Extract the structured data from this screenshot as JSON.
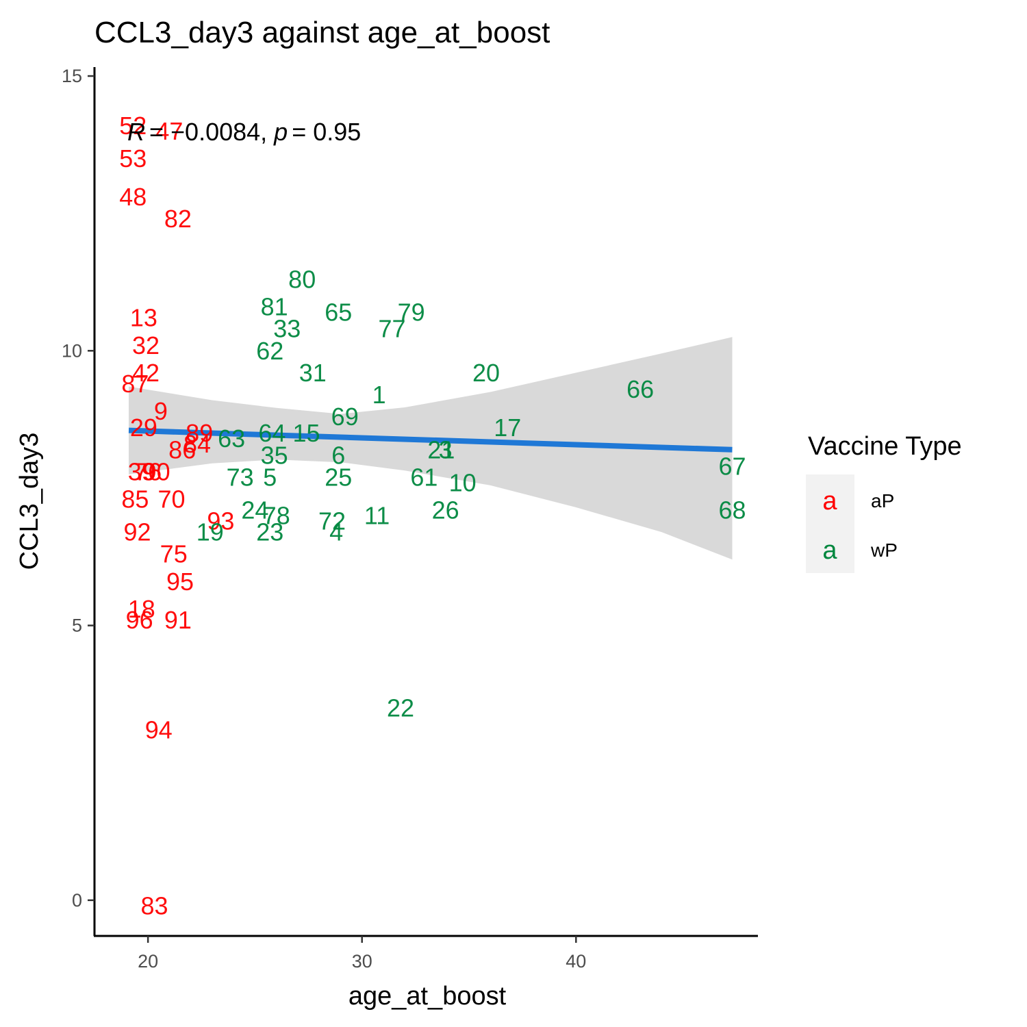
{
  "chart_data": {
    "type": "scatter",
    "title": "CCL3_day3 against age_at_boost",
    "xlabel": "age_at_boost",
    "ylabel": "CCL3_day3",
    "xlim": [
      17.5,
      48.5
    ],
    "ylim": [
      -0.65,
      15.2
    ],
    "xticks": [
      20,
      30,
      40
    ],
    "yticks": [
      0,
      5,
      10,
      15
    ],
    "grid": false,
    "stat_annotation": {
      "r_symbol": "R",
      "r_value": "= −0.0084,",
      "p_symbol": "p",
      "p_value": "= 0.95"
    },
    "legend": {
      "title": "Vaccine Type",
      "position": "right",
      "key_glyph": "a",
      "entries": [
        {
          "name": "aP",
          "color": "#ff0000"
        },
        {
          "name": "wP",
          "color": "#00873e"
        }
      ]
    },
    "trend_line": {
      "x": [
        19.1,
        47.3
      ],
      "y": [
        8.55,
        8.2
      ],
      "color": "#1f78d6",
      "band_color": "#d9d9d9",
      "band": [
        {
          "x": 19.1,
          "lo": 7.75,
          "hi": 9.35
        },
        {
          "x": 23.0,
          "lo": 7.95,
          "hi": 9.1
        },
        {
          "x": 26.0,
          "lo": 8.02,
          "hi": 8.96
        },
        {
          "x": 29.0,
          "lo": 7.97,
          "hi": 8.85
        },
        {
          "x": 32.0,
          "lo": 7.82,
          "hi": 8.97
        },
        {
          "x": 36.0,
          "lo": 7.55,
          "hi": 9.25
        },
        {
          "x": 40.0,
          "lo": 7.15,
          "hi": 9.6
        },
        {
          "x": 44.0,
          "lo": 6.7,
          "hi": 9.95
        },
        {
          "x": 47.3,
          "lo": 6.2,
          "hi": 10.25
        }
      ]
    },
    "series": [
      {
        "name": "aP",
        "color": "#ff0000",
        "points": [
          {
            "label": "52",
            "x": 19.3,
            "y": 14.1
          },
          {
            "label": "47",
            "x": 21.0,
            "y": 14.0
          },
          {
            "label": "53",
            "x": 19.3,
            "y": 13.5
          },
          {
            "label": "48",
            "x": 19.3,
            "y": 12.8
          },
          {
            "label": "82",
            "x": 21.4,
            "y": 12.4
          },
          {
            "label": "13",
            "x": 19.8,
            "y": 10.6
          },
          {
            "label": "32",
            "x": 19.9,
            "y": 10.1
          },
          {
            "label": "42",
            "x": 19.9,
            "y": 9.6
          },
          {
            "label": "87",
            "x": 19.4,
            "y": 9.4
          },
          {
            "label": "9",
            "x": 20.6,
            "y": 8.9
          },
          {
            "label": "29",
            "x": 19.8,
            "y": 8.6
          },
          {
            "label": "89",
            "x": 22.4,
            "y": 8.5
          },
          {
            "label": "84",
            "x": 22.3,
            "y": 8.3
          },
          {
            "label": "86",
            "x": 21.6,
            "y": 8.2
          },
          {
            "label": "39",
            "x": 19.7,
            "y": 7.8
          },
          {
            "label": "76",
            "x": 20.0,
            "y": 7.8
          },
          {
            "label": "90",
            "x": 20.4,
            "y": 7.8
          },
          {
            "label": "85",
            "x": 19.4,
            "y": 7.3
          },
          {
            "label": "70",
            "x": 21.1,
            "y": 7.3
          },
          {
            "label": "92",
            "x": 19.5,
            "y": 6.7
          },
          {
            "label": "93",
            "x": 23.4,
            "y": 6.9
          },
          {
            "label": "75",
            "x": 21.2,
            "y": 6.3
          },
          {
            "label": "95",
            "x": 21.5,
            "y": 5.8
          },
          {
            "label": "18",
            "x": 19.7,
            "y": 5.3
          },
          {
            "label": "96",
            "x": 19.6,
            "y": 5.1
          },
          {
            "label": "91",
            "x": 21.4,
            "y": 5.1
          },
          {
            "label": "94",
            "x": 20.5,
            "y": 3.1
          },
          {
            "label": "83",
            "x": 20.3,
            "y": -0.1
          }
        ]
      },
      {
        "name": "wP",
        "color": "#00873e",
        "points": [
          {
            "label": "80",
            "x": 27.2,
            "y": 11.3
          },
          {
            "label": "81",
            "x": 25.9,
            "y": 10.8
          },
          {
            "label": "65",
            "x": 28.9,
            "y": 10.7
          },
          {
            "label": "79",
            "x": 32.3,
            "y": 10.7
          },
          {
            "label": "77",
            "x": 31.4,
            "y": 10.4
          },
          {
            "label": "33",
            "x": 26.5,
            "y": 10.4
          },
          {
            "label": "62",
            "x": 25.7,
            "y": 10.0
          },
          {
            "label": "31",
            "x": 27.7,
            "y": 9.6
          },
          {
            "label": "20",
            "x": 35.8,
            "y": 9.6
          },
          {
            "label": "66",
            "x": 43.0,
            "y": 9.3
          },
          {
            "label": "1",
            "x": 30.8,
            "y": 9.2
          },
          {
            "label": "69",
            "x": 29.2,
            "y": 8.8
          },
          {
            "label": "17",
            "x": 36.8,
            "y": 8.6
          },
          {
            "label": "64",
            "x": 25.8,
            "y": 8.5
          },
          {
            "label": "15",
            "x": 27.4,
            "y": 8.5
          },
          {
            "label": "63",
            "x": 23.9,
            "y": 8.4
          },
          {
            "label": "21",
            "x": 33.7,
            "y": 8.2
          },
          {
            "label": "3",
            "x": 33.9,
            "y": 8.2
          },
          {
            "label": "35",
            "x": 25.9,
            "y": 8.1
          },
          {
            "label": "6",
            "x": 28.9,
            "y": 8.1
          },
          {
            "label": "67",
            "x": 47.3,
            "y": 7.9
          },
          {
            "label": "73",
            "x": 24.3,
            "y": 7.7
          },
          {
            "label": "5",
            "x": 25.7,
            "y": 7.7
          },
          {
            "label": "25",
            "x": 28.9,
            "y": 7.7
          },
          {
            "label": "61",
            "x": 32.9,
            "y": 7.7
          },
          {
            "label": "10",
            "x": 34.7,
            "y": 7.6
          },
          {
            "label": "24",
            "x": 25.0,
            "y": 7.1
          },
          {
            "label": "78",
            "x": 26.0,
            "y": 7.0
          },
          {
            "label": "72",
            "x": 28.6,
            "y": 6.9
          },
          {
            "label": "11",
            "x": 30.7,
            "y": 7.0
          },
          {
            "label": "26",
            "x": 33.9,
            "y": 7.1
          },
          {
            "label": "68",
            "x": 47.3,
            "y": 7.1
          },
          {
            "label": "19",
            "x": 22.9,
            "y": 6.7
          },
          {
            "label": "23",
            "x": 25.7,
            "y": 6.7
          },
          {
            "label": "4",
            "x": 28.8,
            "y": 6.7
          },
          {
            "label": "22",
            "x": 31.8,
            "y": 3.5
          }
        ]
      }
    ]
  }
}
